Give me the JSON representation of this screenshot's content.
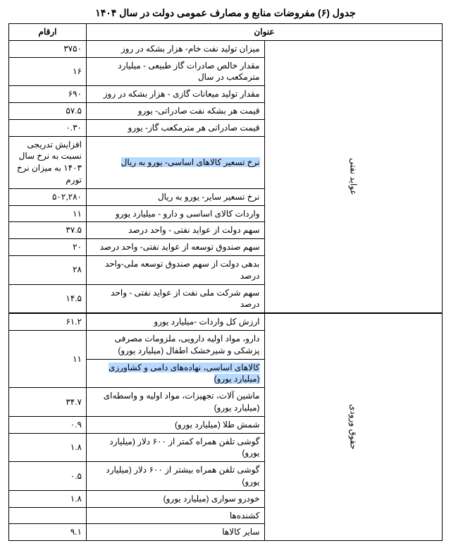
{
  "table_title": "جدول (۶) مفروضات منابع و مصارف عمومی دولت در سال ۱۴۰۴",
  "header": {
    "title": "عنوان",
    "figures": "ارقام"
  },
  "highlight_color": "#b7d8ff",
  "groups": [
    {
      "label": "عواید نفتی",
      "rows": [
        {
          "title": "میزان تولید نفت خام- هزار بشکه در روز",
          "value": "۳۷۵۰"
        },
        {
          "title": "مقدار خالص صادرات گاز طبیعی - میلیارد مترمکعب در سال",
          "value": "۱۶"
        },
        {
          "title": "مقدار تولید میعانات گازی - هزار بشکه در روز",
          "value": "۶۹۰"
        },
        {
          "title": "قیمت هر بشکه نفت صادراتی- یورو",
          "value": "۵۷.۵"
        },
        {
          "title": "قیمت صادراتی هر مترمکعب گاز- یورو",
          "value": "۰.۳۰"
        },
        {
          "title": "نرخ تسعیر کالاهای اساسی- یورو به ریال",
          "value": "افزایش تدریجی نسبت به نرخ سال ۱۴۰۳ به میزان نرخ تورم",
          "highlight_title": true
        },
        {
          "title": "نرخ تسعیر سایر- یورو به ریال",
          "value": "۵۰۲,۲۸۰"
        },
        {
          "title": "واردات کالای اساسی و دارو - میلیارد یورو",
          "value": "۱۱"
        },
        {
          "title": "سهم دولت از عواید نفتی - واحد درصد",
          "value": "۳۷.۵"
        },
        {
          "title": "سهم صندوق توسعه از عواید نفتی- واحد درصد",
          "value": "۲۰"
        },
        {
          "title": "بدهی دولت از سهم صندوق توسعه ملی-واحد درصد",
          "value": "۲۸"
        },
        {
          "title": "سهم شرکت ملی نفت از عواید نفتی - واحد درصد",
          "value": "۱۴.۵"
        }
      ]
    },
    {
      "label": "حقوق ورودی",
      "rows": [
        {
          "title": "ارزش کل واردات -میلیارد یورو",
          "value": "۶۱.۲"
        },
        {
          "title": "دارو، مواد اولیه دارویی، ملزومات مصرفی پزشکی و شیرخشک اطفال (میلیارد یورو)",
          "value": "۱۱",
          "merge_value_with_next": true
        },
        {
          "title": "کالاهای اساسی، نهاده‌های دامی و کشاورزی (میلیارد یورو)",
          "highlight_title": true
        },
        {
          "title": "ماشین آلات، تجهیزات، مواد اولیه و واسطه‌ای (میلیارد یورو)",
          "value": "۳۴.۷"
        },
        {
          "title": "شمش طلا (میلیارد یورو)",
          "value": "۰.۹"
        },
        {
          "title": "گوشی تلفن همراه کمتر از ۶۰۰ دلار (میلیارد یورو)",
          "value": "۱.۸"
        },
        {
          "title": "گوشی تلفن همراه بیشتر از ۶۰۰ دلار (میلیارد یورو)",
          "value": "۰.۵"
        },
        {
          "title": "خودرو سواری (میلیارد یورو)",
          "value": "۱.۸"
        },
        {
          "title": "کشنده‌ها",
          "value": ""
        },
        {
          "title": "سایر کالاها",
          "value": "۹.۱"
        }
      ]
    }
  ]
}
